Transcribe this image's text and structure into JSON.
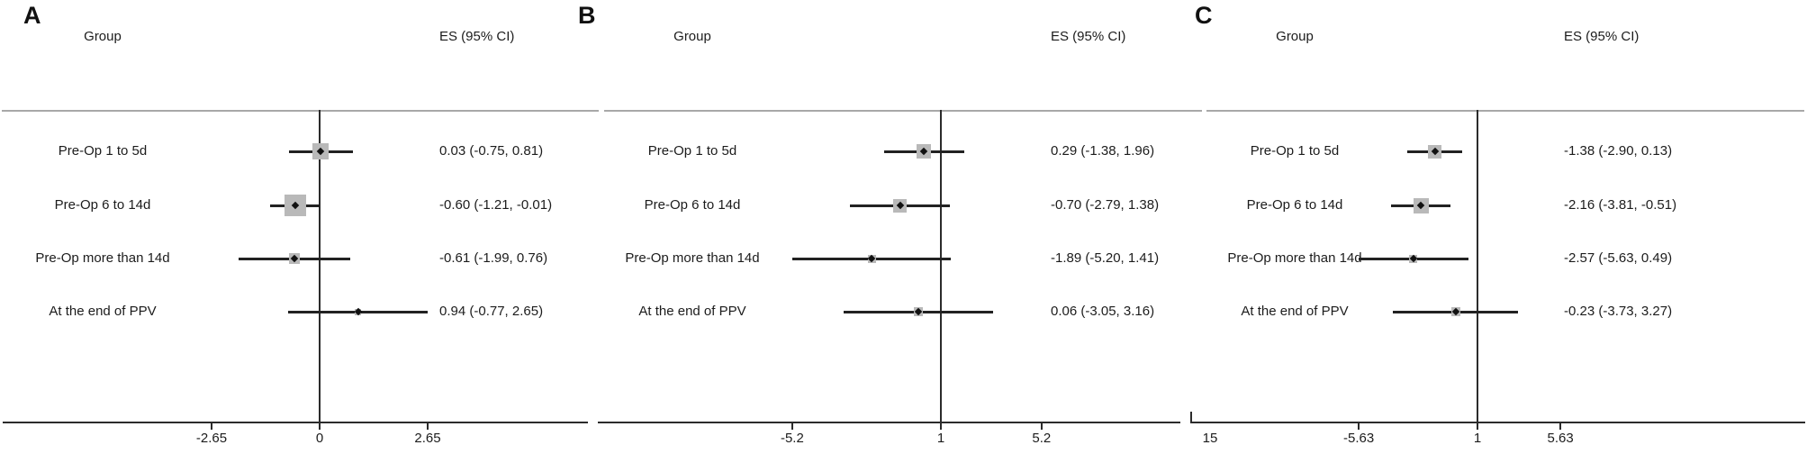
{
  "figure_background": "#ffffff",
  "colors": {
    "line": "#2b2b2b",
    "ci_line": "#222222",
    "separator_line": "#a8a8a8",
    "marker_square": "#b9b9b9",
    "point_marker": "#111111",
    "text": "#1c1c1c"
  },
  "chart_data": [
    {
      "type": "scatter",
      "variant": "forest-plot",
      "panel_label": "A",
      "group_header": "Group",
      "es_header": "ES (95% CI)",
      "rows": [
        {
          "label": "Pre-Op 1 to 5d",
          "es": 0.03,
          "ci_low": -0.75,
          "ci_high": 0.81,
          "es_text": "0.03 (-0.75, 0.81)",
          "marker_size": 18
        },
        {
          "label": "Pre-Op 6 to 14d",
          "es": -0.6,
          "ci_low": -1.21,
          "ci_high": -0.01,
          "es_text": "-0.60 (-1.21, -0.01)",
          "marker_size": 24
        },
        {
          "label": "Pre-Op more than 14d",
          "es": -0.61,
          "ci_low": -1.99,
          "ci_high": 0.76,
          "es_text": "-0.61 (-1.99, 0.76)",
          "marker_size": 12
        },
        {
          "label": "At the end of PPV",
          "es": 0.94,
          "ci_low": -0.77,
          "ci_high": 2.65,
          "es_text": "0.94 (-0.77, 2.65)",
          "marker_size": 7
        }
      ],
      "axis": {
        "ticks": [
          {
            "value": -2.65,
            "label": "-2.65"
          },
          {
            "value": 0,
            "label": "0"
          },
          {
            "value": 2.65,
            "label": "2.65"
          }
        ],
        "ref_value": 0,
        "edge_label": ""
      }
    },
    {
      "type": "scatter",
      "variant": "forest-plot",
      "panel_label": "B",
      "group_header": "Group",
      "es_header": "ES (95% CI)",
      "rows": [
        {
          "label": "Pre-Op 1 to 5d",
          "es": 0.29,
          "ci_low": -1.38,
          "ci_high": 1.96,
          "es_text": "0.29 (-1.38, 1.96)",
          "marker_size": 16
        },
        {
          "label": "Pre-Op 6 to 14d",
          "es": -0.7,
          "ci_low": -2.79,
          "ci_high": 1.38,
          "es_text": "-0.70 (-2.79, 1.38)",
          "marker_size": 15
        },
        {
          "label": "Pre-Op more than 14d",
          "es": -1.89,
          "ci_low": -5.2,
          "ci_high": 1.41,
          "es_text": "-1.89 (-5.20, 1.41)",
          "marker_size": 9
        },
        {
          "label": "At the end of PPV",
          "es": 0.06,
          "ci_low": -3.05,
          "ci_high": 3.16,
          "es_text": "0.06 (-3.05, 3.16)",
          "marker_size": 10
        }
      ],
      "axis": {
        "ticks": [
          {
            "value": -5.2,
            "label": "-5.2"
          },
          {
            "value": 1,
            "label": "1"
          },
          {
            "value": 5.2,
            "label": "5.2"
          }
        ],
        "ref_value": 1,
        "edge_label": ""
      }
    },
    {
      "type": "scatter",
      "variant": "forest-plot",
      "panel_label": "C",
      "group_header": "Group",
      "es_header": "ES (95% CI)",
      "rows": [
        {
          "label": "Pre-Op 1 to 5d",
          "es": -1.38,
          "ci_low": -2.9,
          "ci_high": 0.13,
          "es_text": "-1.38 (-2.90, 0.13)",
          "marker_size": 15
        },
        {
          "label": "Pre-Op 6 to 14d",
          "es": -2.16,
          "ci_low": -3.81,
          "ci_high": -0.51,
          "es_text": "-2.16 (-3.81, -0.51)",
          "marker_size": 17
        },
        {
          "label": "Pre-Op more than 14d",
          "es": -2.57,
          "ci_low": -5.63,
          "ci_high": 0.49,
          "es_text": "-2.57 (-5.63, 0.49)",
          "marker_size": 9
        },
        {
          "label": "At the end of PPV",
          "es": -0.23,
          "ci_low": -3.73,
          "ci_high": 3.27,
          "es_text": "-0.23 (-3.73, 3.27)",
          "marker_size": 10
        }
      ],
      "axis": {
        "ticks": [
          {
            "value": -5.63,
            "label": "-5.63"
          },
          {
            "value": 1,
            "label": "1"
          },
          {
            "value": 5.63,
            "label": "5.63"
          }
        ],
        "ref_value": 1,
        "edge_label": "15"
      }
    }
  ]
}
